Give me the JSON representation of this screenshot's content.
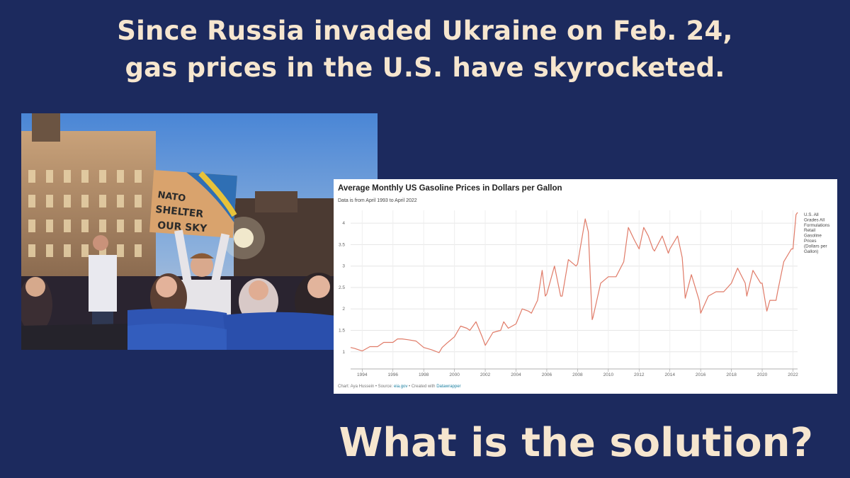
{
  "headline": {
    "line1": "Since Russia invaded Ukraine on Feb. 24,",
    "line2": "gas prices in the U.S. have skyrocketed."
  },
  "photo": {
    "sign_line1": "NATO",
    "sign_line2": "SHELTER",
    "sign_line3": "OUR SKY"
  },
  "chart_data": {
    "type": "line",
    "title": "Average Monthly US Gasoline Prices in Dollars per Gallon",
    "subtitle": "Data is from April 1993 to April 2022",
    "xlabel": "",
    "ylabel": "",
    "xlim": [
      1993.25,
      2022.3
    ],
    "ylim": [
      0.6,
      4.3
    ],
    "x_ticks": [
      1994,
      1996,
      1998,
      2000,
      2002,
      2004,
      2006,
      2008,
      2010,
      2012,
      2014,
      2016,
      2018,
      2020,
      2022
    ],
    "y_ticks": [
      1,
      1.5,
      2,
      2.5,
      3,
      3.5,
      4
    ],
    "grid": true,
    "series": [
      {
        "name": "U.S. All Grades All Formulations Retail Gasoline Prices (Dollars per Gallon)",
        "color": "#e07b68",
        "x": [
          1993.25,
          1993.5,
          1993.75,
          1994.0,
          1994.5,
          1995.0,
          1995.4,
          1996.0,
          1996.3,
          1996.6,
          1997.0,
          1997.5,
          1998.0,
          1998.5,
          1999.0,
          1999.2,
          1999.5,
          2000.0,
          2000.4,
          2000.8,
          2001.0,
          2001.4,
          2001.8,
          2002.0,
          2002.5,
          2003.0,
          2003.2,
          2003.5,
          2004.0,
          2004.4,
          2004.8,
          2005.0,
          2005.4,
          2005.7,
          2005.9,
          2006.0,
          2006.5,
          2006.9,
          2007.0,
          2007.4,
          2007.9,
          2008.0,
          2008.5,
          2008.7,
          2008.95,
          2009.0,
          2009.5,
          2010.0,
          2010.5,
          2011.0,
          2011.3,
          2011.7,
          2012.0,
          2012.3,
          2012.6,
          2012.9,
          2013.0,
          2013.5,
          2013.9,
          2014.0,
          2014.5,
          2014.8,
          2015.0,
          2015.4,
          2015.9,
          2016.0,
          2016.5,
          2017.0,
          2017.5,
          2018.0,
          2018.4,
          2018.9,
          2019.0,
          2019.4,
          2019.9,
          2020.0,
          2020.3,
          2020.5,
          2020.9,
          2021.0,
          2021.4,
          2021.9,
          2022.0,
          2022.2,
          2022.3
        ],
        "y": [
          1.1,
          1.08,
          1.05,
          1.02,
          1.12,
          1.12,
          1.22,
          1.22,
          1.3,
          1.3,
          1.28,
          1.25,
          1.1,
          1.05,
          0.98,
          1.1,
          1.2,
          1.35,
          1.6,
          1.55,
          1.5,
          1.7,
          1.35,
          1.15,
          1.45,
          1.5,
          1.7,
          1.55,
          1.65,
          2.0,
          1.95,
          1.9,
          2.2,
          2.9,
          2.3,
          2.35,
          3.0,
          2.3,
          2.3,
          3.15,
          3.0,
          3.05,
          4.1,
          3.8,
          1.75,
          1.8,
          2.6,
          2.75,
          2.75,
          3.1,
          3.9,
          3.6,
          3.4,
          3.9,
          3.7,
          3.4,
          3.35,
          3.7,
          3.3,
          3.4,
          3.7,
          3.2,
          2.25,
          2.8,
          2.2,
          1.9,
          2.3,
          2.4,
          2.4,
          2.6,
          2.95,
          2.6,
          2.3,
          2.9,
          2.6,
          2.6,
          1.95,
          2.2,
          2.2,
          2.4,
          3.1,
          3.4,
          3.4,
          4.2,
          4.25
        ]
      }
    ]
  },
  "chart_footer": {
    "prefix": "Chart: Aya Hussein • Source: ",
    "source_link": "eia.gov",
    "middle": " • Created with ",
    "tool_link": "Datawrapper"
  },
  "legend_label": [
    "U.S. All",
    "Grades All",
    "Formulations",
    "Retail",
    "Gasoline",
    "Prices",
    "(Dollars per",
    "Gallon)"
  ],
  "question": "What is the solution?"
}
